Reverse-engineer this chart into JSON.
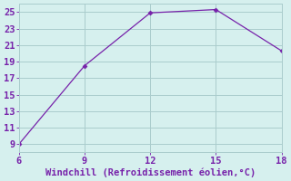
{
  "x": [
    6,
    9,
    12,
    15,
    18
  ],
  "y": [
    9.0,
    18.5,
    24.9,
    25.3,
    20.3
  ],
  "line_color": "#7722aa",
  "marker_color": "#7722aa",
  "bg_color": "#d6f0ee",
  "grid_color": "#aacccc",
  "xlabel": "Windchill (Refroidissement éolien,°C)",
  "xlabel_color": "#7722aa",
  "tick_color": "#7722aa",
  "xlim": [
    6,
    18
  ],
  "ylim": [
    8,
    26
  ],
  "xticks": [
    6,
    9,
    12,
    15,
    18
  ],
  "yticks": [
    9,
    11,
    13,
    15,
    17,
    19,
    21,
    23,
    25
  ],
  "spine_color": "#aacccc",
  "font_size": 7.5
}
